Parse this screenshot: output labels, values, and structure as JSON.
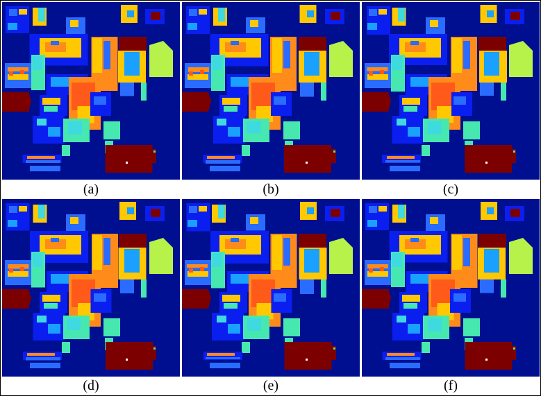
{
  "figure": {
    "panels": [
      {
        "id": "a",
        "label": "(a)"
      },
      {
        "id": "b",
        "label": "(b)"
      },
      {
        "id": "c",
        "label": "(c)"
      },
      {
        "id": "d",
        "label": "(d)"
      },
      {
        "id": "e",
        "label": "(e)"
      },
      {
        "id": "f",
        "label": "(f)"
      }
    ],
    "colors": {
      "background": "#000f8f",
      "blue": "#0a1ef0",
      "light_blue": "#2a6cff",
      "sky": "#1aa0ff",
      "cyan": "#3fd9e0",
      "aqua": "#46e8b0",
      "yellow": "#ffc800",
      "orange": "#ff8c1a",
      "red_orange": "#ff5a1a",
      "lime": "#b6f24a",
      "maroon": "#7d0000",
      "white": "#ffffff"
    }
  }
}
